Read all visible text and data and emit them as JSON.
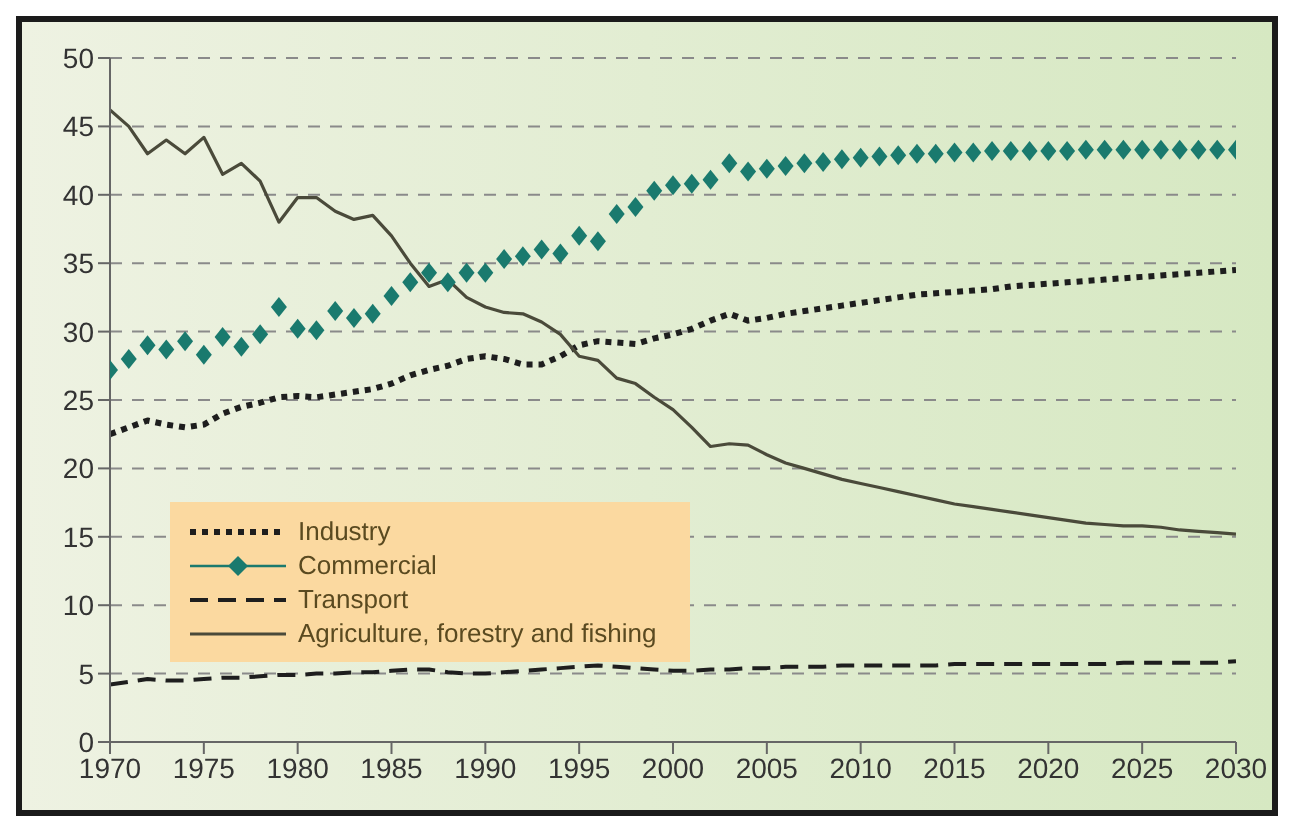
{
  "chart_data": {
    "type": "line",
    "x": [
      1970,
      1971,
      1972,
      1973,
      1974,
      1975,
      1976,
      1977,
      1978,
      1979,
      1980,
      1981,
      1982,
      1983,
      1984,
      1985,
      1986,
      1987,
      1988,
      1989,
      1990,
      1991,
      1992,
      1993,
      1994,
      1995,
      1996,
      1997,
      1998,
      1999,
      2000,
      2001,
      2002,
      2003,
      2004,
      2005,
      2006,
      2007,
      2008,
      2009,
      2010,
      2011,
      2012,
      2013,
      2014,
      2015,
      2016,
      2017,
      2018,
      2019,
      2020,
      2021,
      2022,
      2023,
      2024,
      2025,
      2026,
      2027,
      2028,
      2029,
      2030
    ],
    "xlim": [
      1970,
      2030
    ],
    "xticks": [
      1970,
      1975,
      1980,
      1985,
      1990,
      1995,
      2000,
      2005,
      2010,
      2015,
      2020,
      2025,
      2030
    ],
    "ylim": [
      0,
      50
    ],
    "yticks": [
      0,
      5,
      10,
      15,
      20,
      25,
      30,
      35,
      40,
      45,
      50
    ],
    "grid": "y",
    "legend": "left",
    "series": [
      {
        "name": "Industry",
        "line_style": "dotted",
        "marker": "none",
        "color": "#1e1e1e",
        "values": [
          22.5,
          23,
          23.5,
          23.2,
          23,
          23.2,
          24,
          24.5,
          24.8,
          25.2,
          25.3,
          25.2,
          25.4,
          25.6,
          25.8,
          26.2,
          26.8,
          27.2,
          27.5,
          28,
          28.2,
          28,
          27.6,
          27.6,
          28.2,
          29,
          29.3,
          29.2,
          29.1,
          29.5,
          29.8,
          30.2,
          30.8,
          31.3,
          30.8,
          31,
          31.3,
          31.5,
          31.7,
          31.9,
          32.1,
          32.3,
          32.5,
          32.7,
          32.8,
          32.9,
          33,
          33.1,
          33.3,
          33.4,
          33.5,
          33.6,
          33.7,
          33.8,
          33.9,
          34,
          34.1,
          34.2,
          34.3,
          34.4,
          34.5
        ]
      },
      {
        "name": "Commercial",
        "type": "scatter",
        "marker": "diamond",
        "color": "#1a7a6e",
        "values": [
          27.2,
          28,
          29,
          28.7,
          29.3,
          28.3,
          29.6,
          28.9,
          29.8,
          31.8,
          30.2,
          30.1,
          31.5,
          31,
          31.3,
          32.6,
          33.6,
          34.3,
          33.6,
          34.3,
          34.3,
          35.3,
          35.5,
          36,
          35.7,
          37,
          36.6,
          38.6,
          39.1,
          40.3,
          40.7,
          40.8,
          41.1,
          42.3,
          41.7,
          41.9,
          42.1,
          42.3,
          42.4,
          42.6,
          42.7,
          42.8,
          42.9,
          43,
          43,
          43.1,
          43.1,
          43.2,
          43.2,
          43.2,
          43.2,
          43.2,
          43.3,
          43.3,
          43.3,
          43.3,
          43.3,
          43.3,
          43.3,
          43.3,
          43.3
        ]
      },
      {
        "name": "Transport",
        "line_style": "dashed",
        "marker": "none",
        "color": "#1e1e1e",
        "values": [
          4.2,
          4.4,
          4.6,
          4.5,
          4.5,
          4.6,
          4.7,
          4.7,
          4.8,
          4.9,
          4.9,
          5,
          5,
          5.1,
          5.1,
          5.2,
          5.3,
          5.3,
          5.1,
          5,
          5,
          5.1,
          5.2,
          5.3,
          5.4,
          5.5,
          5.6,
          5.5,
          5.4,
          5.3,
          5.2,
          5.2,
          5.3,
          5.3,
          5.4,
          5.4,
          5.5,
          5.5,
          5.5,
          5.6,
          5.6,
          5.6,
          5.6,
          5.6,
          5.6,
          5.7,
          5.7,
          5.7,
          5.7,
          5.7,
          5.7,
          5.7,
          5.7,
          5.7,
          5.8,
          5.8,
          5.8,
          5.8,
          5.8,
          5.8,
          5.9
        ]
      },
      {
        "name": "Agriculture, forestry and fishing",
        "line_style": "solid",
        "marker": "none",
        "color": "#4a4a3a",
        "values": [
          46.2,
          45,
          43,
          44,
          43,
          44.2,
          41.5,
          42.3,
          41,
          38,
          39.8,
          39.8,
          38.8,
          38.2,
          38.5,
          37,
          35,
          33.3,
          33.8,
          32.5,
          31.8,
          31.4,
          31.3,
          30.7,
          29.8,
          28.2,
          27.9,
          26.6,
          26.2,
          25.2,
          24.3,
          23,
          21.6,
          21.8,
          21.7,
          21,
          20.4,
          20,
          19.6,
          19.2,
          18.9,
          18.6,
          18.3,
          18,
          17.7,
          17.4,
          17.2,
          17,
          16.8,
          16.6,
          16.4,
          16.2,
          16,
          15.9,
          15.8,
          15.8,
          15.7,
          15.5,
          15.4,
          15.3,
          15.2
        ]
      }
    ]
  }
}
